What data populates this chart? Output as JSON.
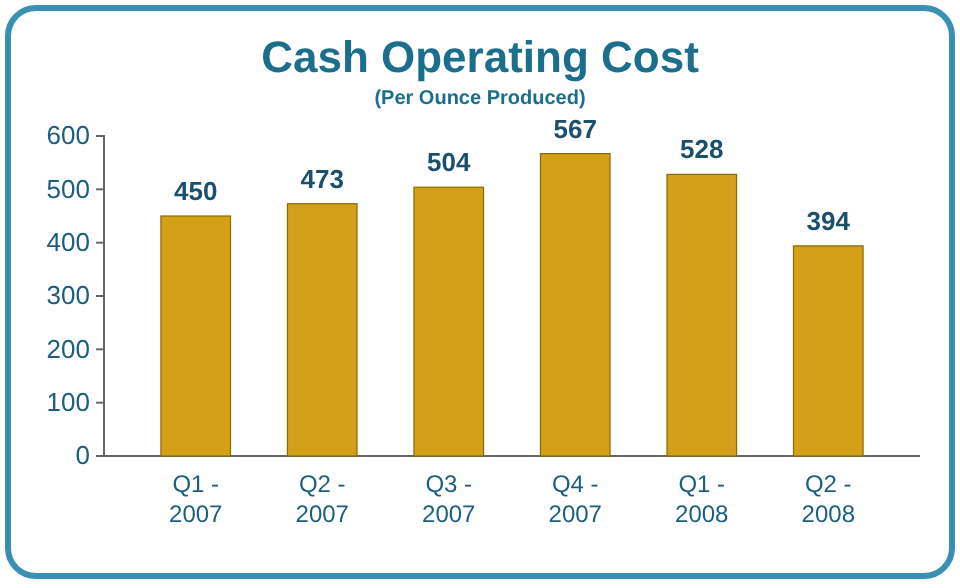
{
  "chart_data": {
    "type": "bar",
    "title": "Cash Operating Cost",
    "subtitle": "(Per Ounce Produced)",
    "categories": [
      "Q1 - 2007",
      "Q2 - 2007",
      "Q3 - 2007",
      "Q4 - 2007",
      "Q1 - 2008",
      "Q2 - 2008"
    ],
    "values": [
      450,
      473,
      504,
      567,
      528,
      394
    ],
    "color": "#d4a017",
    "ylim": [
      0,
      600
    ],
    "yticks": [
      0,
      100,
      200,
      300,
      400,
      500,
      600
    ],
    "data_labels": true
  }
}
